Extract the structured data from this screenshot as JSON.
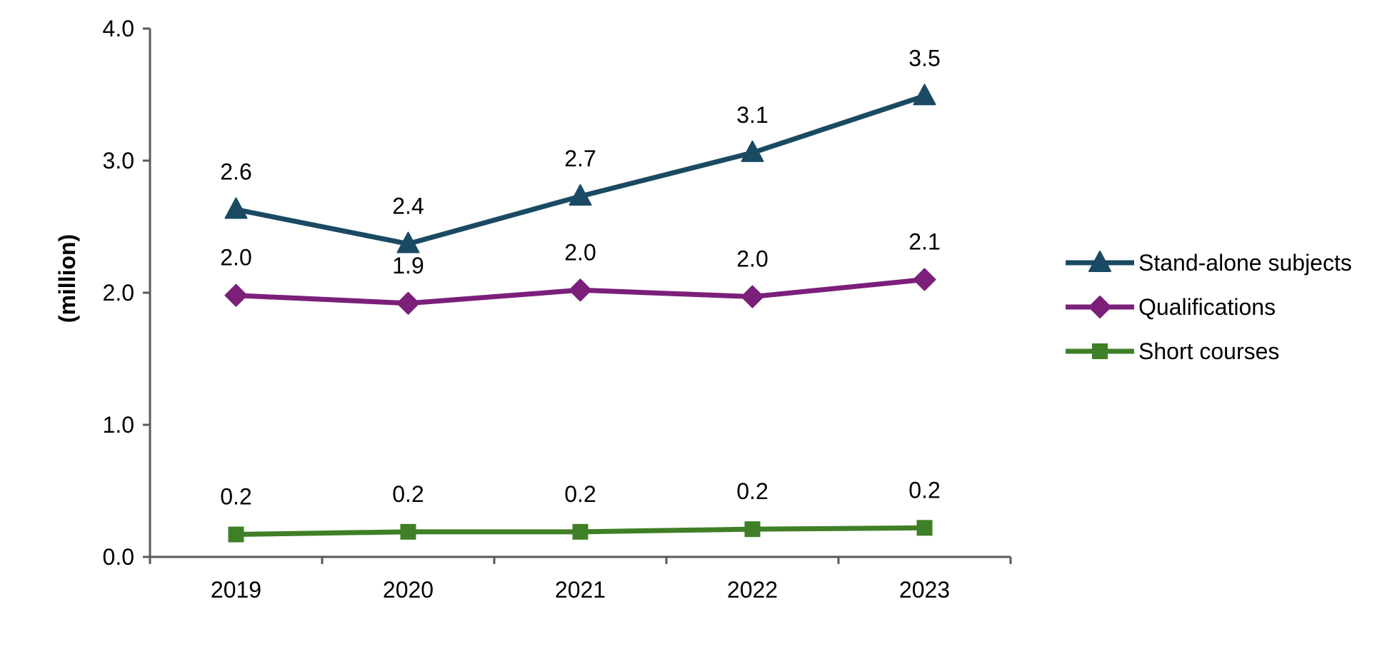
{
  "chart_data": {
    "type": "line",
    "categories": [
      "2019",
      "2020",
      "2021",
      "2022",
      "2023"
    ],
    "ylabel": "(million)",
    "ylim": [
      0,
      4
    ],
    "yticks": [
      "0.0",
      "1.0",
      "2.0",
      "3.0",
      "4.0"
    ],
    "grid": false,
    "legend": "right",
    "series": [
      {
        "name": "Stand-alone subjects",
        "color": "#1a4a63",
        "marker": "triangle",
        "values": [
          2.63,
          2.37,
          2.73,
          3.06,
          3.49
        ],
        "labels": [
          "2.6",
          "2.4",
          "2.7",
          "3.1",
          "3.5"
        ]
      },
      {
        "name": "Qualifications",
        "color": "#7b1f7a",
        "marker": "diamond",
        "values": [
          1.98,
          1.92,
          2.02,
          1.97,
          2.1
        ],
        "labels": [
          "2.0",
          "1.9",
          "2.0",
          "2.0",
          "2.1"
        ]
      },
      {
        "name": "Short courses",
        "color": "#3f7f27",
        "marker": "square",
        "values": [
          0.17,
          0.19,
          0.19,
          0.21,
          0.22
        ],
        "labels": [
          "0.2",
          "0.2",
          "0.2",
          "0.2",
          "0.2"
        ]
      }
    ]
  }
}
